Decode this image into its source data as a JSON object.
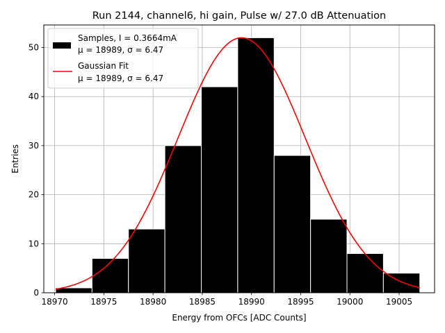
{
  "chart_data": {
    "type": "bar",
    "title": "Run 2144, channel6, hi gain, Pulse w/ 27.0 dB Attenuation",
    "xlabel": "Energy from OFCs [ADC Counts]",
    "ylabel": "Entries",
    "xlim": [
      18968.9,
      19008.6
    ],
    "ylim": [
      0,
      54.6
    ],
    "xticks": [
      18970,
      18975,
      18980,
      18985,
      18990,
      18995,
      19000,
      19005
    ],
    "yticks": [
      0,
      10,
      20,
      30,
      40,
      50
    ],
    "grid": true,
    "legend_position": "top-left",
    "histogram": {
      "name_line1": "Samples, I = 0.3664mA",
      "name_line2": "μ = 18989, σ = 6.47",
      "color": "#000000",
      "bin_edges": [
        18970.1,
        18973.8,
        18977.5,
        18981.2,
        18984.9,
        18988.6,
        18992.3,
        18996.0,
        18999.7,
        19003.4,
        19007.1
      ],
      "counts": [
        1,
        7,
        13,
        30,
        42,
        52,
        28,
        15,
        8,
        4
      ]
    },
    "fit": {
      "name_line1": "Gaussian Fit",
      "name_line2": "μ = 18989, σ = 6.47",
      "color": "#ff0000",
      "mu": 18989,
      "sigma": 6.47,
      "peak": 52.0,
      "x_range": [
        18970.1,
        19007.1
      ]
    }
  }
}
